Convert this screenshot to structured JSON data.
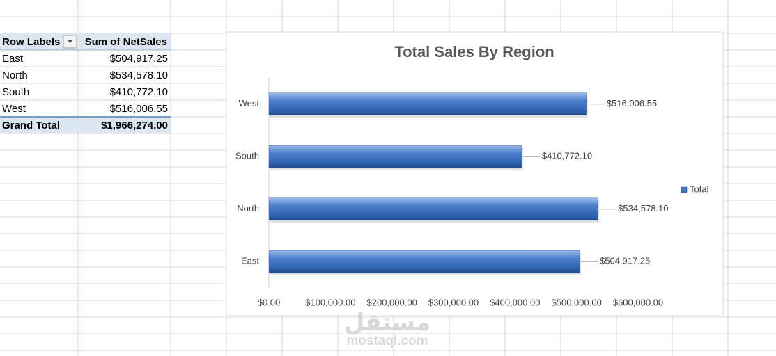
{
  "table": {
    "headers": [
      "Row Labels",
      "Sum of NetSales"
    ],
    "rows": [
      [
        "East",
        "$504,917.25"
      ],
      [
        "North",
        "$534,578.10"
      ],
      [
        "South",
        "$410,772.10"
      ],
      [
        "West",
        "$516,006.55"
      ]
    ],
    "total": [
      "Grand Total",
      "$1,966,274.00"
    ]
  },
  "chart_data": {
    "type": "hbar",
    "title": "Total Sales By Region",
    "categories": [
      "East",
      "North",
      "South",
      "West"
    ],
    "series": [
      {
        "name": "Total",
        "color": "#3f73c0",
        "values": [
          504917.25,
          534578.1,
          410772.1,
          516006.55
        ],
        "value_labels": [
          "$504,917.25",
          "$534,578.10",
          "$410,772.10",
          "$516,006.55"
        ]
      }
    ],
    "xlim": [
      0,
      600000
    ],
    "xticks": [
      {
        "value": 0,
        "label": "$0.00"
      },
      {
        "value": 100000,
        "label": "$100,000.00"
      },
      {
        "value": 200000,
        "label": "$200,000.00"
      },
      {
        "value": 300000,
        "label": "$300,000.00"
      },
      {
        "value": 400000,
        "label": "$400,000.00"
      },
      {
        "value": 500000,
        "label": "$500,000.00"
      },
      {
        "value": 600000,
        "label": "$600,000.00"
      }
    ],
    "legend": "right"
  },
  "watermark": {
    "arabic": "مستقل",
    "latin": "mostaql.com"
  }
}
